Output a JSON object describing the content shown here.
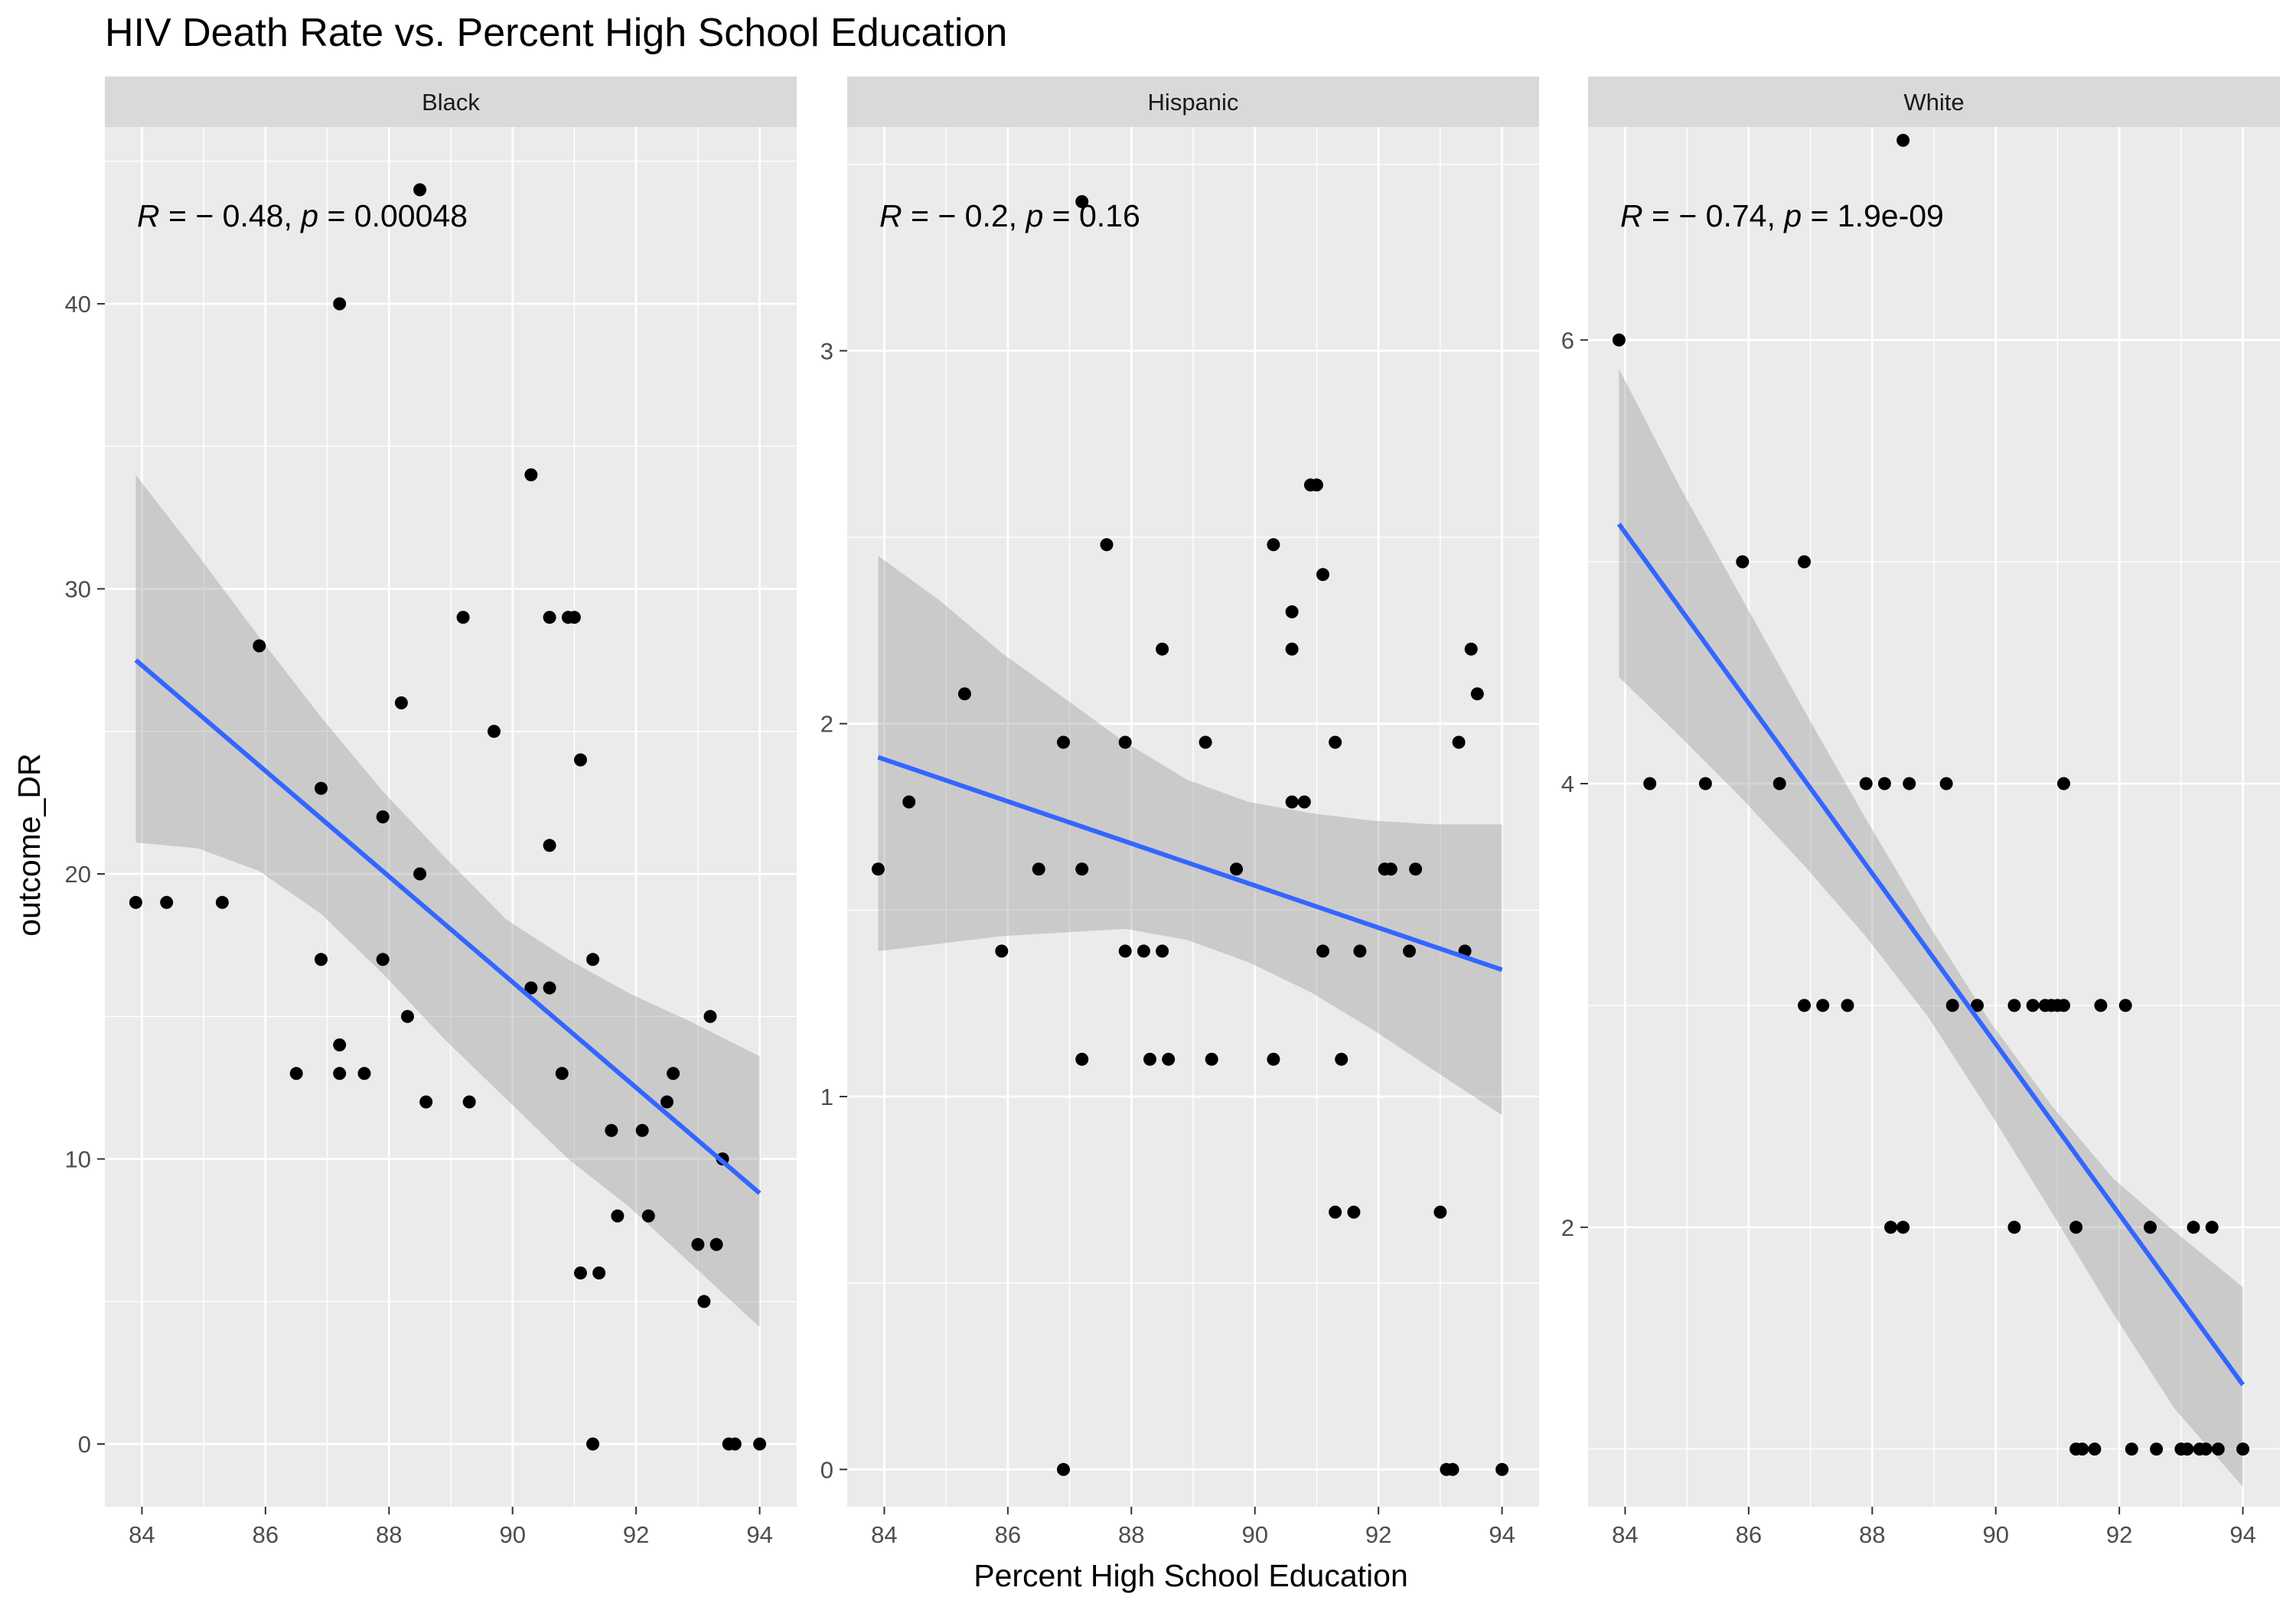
{
  "chart_data": {
    "type": "scatter",
    "title": "HIV Death Rate vs. Percent High School Education",
    "xlabel": "Percent High School Education",
    "ylabel": "outcome_DR",
    "xlim": [
      83.4,
      94.6
    ],
    "x_ticks": [
      84,
      86,
      88,
      90,
      92,
      94
    ],
    "grid": true,
    "colors": {
      "panel_bg": "#EBEBEB",
      "strip_bg": "#D9D9D9",
      "grid": "#FFFFFF",
      "point": "#000000",
      "fit_line": "#3366FF",
      "ribbon": "#999999"
    },
    "panels": [
      {
        "name": "Black",
        "ylim": [
          -2.2,
          46.2
        ],
        "y_ticks": [
          0,
          10,
          20,
          30,
          40
        ],
        "annotation": {
          "R_label": "R",
          "R_value": " = − 0.48, ",
          "p_label": "p",
          "p_value": " = 0.00048"
        },
        "fit": {
          "x": [
            83.9,
            94.0
          ],
          "y": [
            27.5,
            8.8
          ]
        },
        "ribbon": {
          "x": [
            83.9,
            84.9,
            85.9,
            86.9,
            87.9,
            88.9,
            89.9,
            90.9,
            91.9,
            92.9,
            94.0
          ],
          "upper": [
            34.0,
            31.2,
            28.3,
            25.5,
            22.9,
            20.6,
            18.4,
            17.0,
            15.8,
            14.8,
            13.6
          ],
          "lower": [
            21.1,
            20.9,
            20.1,
            18.6,
            16.5,
            14.2,
            12.1,
            10.0,
            8.3,
            6.3,
            4.1
          ]
        },
        "points": [
          [
            83.9,
            19
          ],
          [
            84.4,
            19
          ],
          [
            85.3,
            19
          ],
          [
            85.9,
            28
          ],
          [
            86.5,
            13
          ],
          [
            86.9,
            23
          ],
          [
            86.9,
            17
          ],
          [
            87.2,
            40
          ],
          [
            87.2,
            14
          ],
          [
            87.2,
            13
          ],
          [
            87.6,
            13
          ],
          [
            87.9,
            22
          ],
          [
            87.9,
            17
          ],
          [
            88.2,
            26
          ],
          [
            88.3,
            15
          ],
          [
            88.5,
            44
          ],
          [
            88.5,
            20
          ],
          [
            88.6,
            12
          ],
          [
            89.2,
            29
          ],
          [
            89.3,
            12
          ],
          [
            89.7,
            25
          ],
          [
            90.3,
            34
          ],
          [
            90.3,
            16
          ],
          [
            90.6,
            29
          ],
          [
            90.6,
            21
          ],
          [
            90.6,
            16
          ],
          [
            90.8,
            13
          ],
          [
            90.9,
            29
          ],
          [
            91.0,
            29
          ],
          [
            91.1,
            24
          ],
          [
            91.1,
            6
          ],
          [
            91.3,
            17
          ],
          [
            91.3,
            0
          ],
          [
            91.4,
            6
          ],
          [
            91.6,
            11
          ],
          [
            91.7,
            8
          ],
          [
            92.1,
            11
          ],
          [
            92.2,
            8
          ],
          [
            92.5,
            12
          ],
          [
            92.6,
            13
          ],
          [
            93.0,
            7
          ],
          [
            93.1,
            5
          ],
          [
            93.2,
            15
          ],
          [
            93.3,
            7
          ],
          [
            93.4,
            10
          ],
          [
            93.5,
            0
          ],
          [
            93.6,
            0
          ],
          [
            94.0,
            0
          ]
        ]
      },
      {
        "name": "Hispanic",
        "ylim": [
          -0.1,
          3.6
        ],
        "y_ticks": [
          0,
          1,
          2,
          3
        ],
        "annotation": {
          "R_label": "R",
          "R_value": " = − 0.2, ",
          "p_label": "p",
          "p_value": " = 0.16"
        },
        "fit": {
          "x": [
            83.9,
            94.0
          ],
          "y": [
            1.91,
            1.34
          ]
        },
        "ribbon": {
          "x": [
            83.9,
            84.9,
            85.9,
            86.9,
            87.9,
            88.9,
            89.9,
            90.9,
            91.9,
            92.9,
            94.0
          ],
          "upper": [
            2.45,
            2.33,
            2.19,
            2.07,
            1.95,
            1.85,
            1.79,
            1.76,
            1.74,
            1.73,
            1.73
          ],
          "lower": [
            1.39,
            1.41,
            1.43,
            1.44,
            1.45,
            1.42,
            1.36,
            1.28,
            1.18,
            1.07,
            0.95
          ]
        },
        "points": [
          [
            83.9,
            1.61
          ],
          [
            84.4,
            1.79
          ],
          [
            85.3,
            2.08
          ],
          [
            85.9,
            1.39
          ],
          [
            86.5,
            1.61
          ],
          [
            86.9,
            1.95
          ],
          [
            86.9,
            0
          ],
          [
            87.2,
            3.4
          ],
          [
            87.2,
            1.61
          ],
          [
            87.2,
            1.1
          ],
          [
            87.6,
            2.48
          ],
          [
            87.9,
            1.95
          ],
          [
            87.9,
            1.39
          ],
          [
            88.2,
            1.39
          ],
          [
            88.3,
            1.1
          ],
          [
            88.5,
            2.2
          ],
          [
            88.5,
            1.39
          ],
          [
            88.6,
            1.1
          ],
          [
            89.2,
            1.95
          ],
          [
            89.3,
            1.1
          ],
          [
            89.7,
            1.61
          ],
          [
            90.3,
            2.48
          ],
          [
            90.3,
            1.1
          ],
          [
            90.6,
            2.3
          ],
          [
            90.6,
            2.2
          ],
          [
            90.6,
            1.79
          ],
          [
            90.8,
            1.79
          ],
          [
            90.9,
            2.64
          ],
          [
            91.0,
            2.64
          ],
          [
            91.1,
            2.4
          ],
          [
            91.1,
            1.39
          ],
          [
            91.3,
            1.95
          ],
          [
            91.3,
            0.69
          ],
          [
            91.4,
            1.1
          ],
          [
            91.6,
            0.69
          ],
          [
            91.7,
            1.39
          ],
          [
            92.1,
            1.61
          ],
          [
            92.2,
            1.61
          ],
          [
            92.5,
            1.39
          ],
          [
            92.6,
            1.61
          ],
          [
            93.0,
            0.69
          ],
          [
            93.1,
            0
          ],
          [
            93.2,
            0
          ],
          [
            93.3,
            1.95
          ],
          [
            93.4,
            1.39
          ],
          [
            93.5,
            2.2
          ],
          [
            93.6,
            2.08
          ],
          [
            94.0,
            0
          ]
        ]
      },
      {
        "name": "White",
        "ylim": [
          0.74,
          6.96
        ],
        "y_ticks": [
          2,
          4,
          6
        ],
        "annotation": {
          "R_label": "R",
          "R_value": " = − 0.74, ",
          "p_label": "p",
          "p_value": " = 1.9e-09"
        },
        "fit": {
          "x": [
            83.9,
            94.0
          ],
          "y": [
            5.17,
            1.29
          ]
        },
        "ribbon": {
          "x": [
            83.9,
            84.9,
            85.9,
            86.9,
            87.9,
            88.9,
            89.9,
            90.9,
            91.9,
            92.9,
            94.0
          ],
          "upper": [
            5.87,
            5.33,
            4.83,
            4.33,
            3.84,
            3.37,
            2.93,
            2.55,
            2.22,
            1.98,
            1.73
          ],
          "lower": [
            4.48,
            4.21,
            3.93,
            3.63,
            3.31,
            2.95,
            2.52,
            2.07,
            1.61,
            1.18,
            0.83
          ]
        },
        "points": [
          [
            83.9,
            6
          ],
          [
            84.4,
            4
          ],
          [
            85.3,
            4
          ],
          [
            85.9,
            5
          ],
          [
            86.5,
            4
          ],
          [
            86.9,
            5
          ],
          [
            86.9,
            3
          ],
          [
            87.2,
            3
          ],
          [
            87.6,
            3
          ],
          [
            87.9,
            4
          ],
          [
            88.2,
            4
          ],
          [
            88.3,
            2
          ],
          [
            88.5,
            6.9
          ],
          [
            88.5,
            2
          ],
          [
            88.6,
            4
          ],
          [
            89.2,
            4
          ],
          [
            89.3,
            3
          ],
          [
            89.7,
            3
          ],
          [
            90.3,
            3
          ],
          [
            90.3,
            2
          ],
          [
            90.6,
            3
          ],
          [
            90.8,
            3
          ],
          [
            90.9,
            3
          ],
          [
            91.0,
            3
          ],
          [
            91.1,
            4
          ],
          [
            91.1,
            3
          ],
          [
            91.3,
            2
          ],
          [
            91.3,
            1
          ],
          [
            91.4,
            1
          ],
          [
            91.6,
            1
          ],
          [
            91.7,
            3
          ],
          [
            92.1,
            3
          ],
          [
            92.2,
            1
          ],
          [
            92.5,
            2
          ],
          [
            92.6,
            1
          ],
          [
            93.0,
            1
          ],
          [
            93.1,
            1
          ],
          [
            93.2,
            2
          ],
          [
            93.3,
            1
          ],
          [
            93.4,
            1
          ],
          [
            93.5,
            2
          ],
          [
            93.6,
            1
          ],
          [
            94.0,
            1
          ]
        ]
      }
    ]
  }
}
